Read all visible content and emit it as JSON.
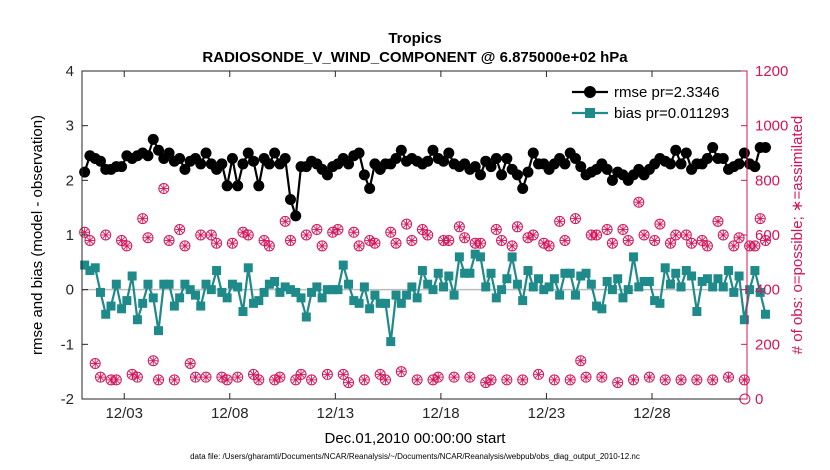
{
  "chart_data": {
    "type": "line",
    "title": "Tropics",
    "subtitle": "RADIOSONDE_V_WIND_COMPONENT @ 6.875000e+02 hPa",
    "xlabel": "Dec.01,2010 00:00:00 start",
    "ylabel": "rmse and bias (model - observation)",
    "y2label": "# of obs: o=possible; ∗=assimilated",
    "footnote": "data file: /Users/gharamti/Documents/NCAR/Reanalysis/~/Documents/NCAR/Reanalysis/webpub/obs_diag_output_2010-12.nc",
    "xlim": [
      1,
      32.5
    ],
    "ylim": [
      -2,
      4
    ],
    "y2lim": [
      0,
      1200
    ],
    "xticks": [
      3,
      8,
      13,
      18,
      23,
      28
    ],
    "xtick_labels": [
      "12/03",
      "12/08",
      "12/13",
      "12/18",
      "12/23",
      "12/28"
    ],
    "yticks": [
      -2,
      -1,
      0,
      1,
      2,
      3,
      4
    ],
    "ytick_labels": [
      "-2",
      "-1",
      "0",
      "1",
      "2",
      "3",
      "4"
    ],
    "y2ticks": [
      0,
      200,
      400,
      600,
      800,
      1000,
      1200
    ],
    "y2tick_labels": [
      "0",
      "200",
      "400",
      "600",
      "800",
      "1000",
      "1200"
    ],
    "legend_position": "top-right",
    "x_start": 1.125,
    "x_step": 0.25,
    "colors": {
      "rmse": "#000000",
      "bias": "#1f8a8a",
      "obs": "#d4145a",
      "axis2": "#d4145a",
      "zero": "#bdbdbd"
    },
    "series": [
      {
        "name": "rmse pr=2.3346",
        "values": [
          2.15,
          2.45,
          2.4,
          2.35,
          2.2,
          2.2,
          2.25,
          2.25,
          2.45,
          2.4,
          2.45,
          2.5,
          2.45,
          2.75,
          2.55,
          2.4,
          2.5,
          2.35,
          2.4,
          2.2,
          2.35,
          2.4,
          2.3,
          2.5,
          2.3,
          2.2,
          2.3,
          1.9,
          2.4,
          1.9,
          2.3,
          2.5,
          2.35,
          1.9,
          2.4,
          2.3,
          2.5,
          2.3,
          2.4,
          1.65,
          1.35,
          2.25,
          2.25,
          2.35,
          2.3,
          2.2,
          2.1,
          2.25,
          2.3,
          2.4,
          2.3,
          2.45,
          2.5,
          2.1,
          1.85,
          2.3,
          2.2,
          2.3,
          2.3,
          2.4,
          2.55,
          2.35,
          2.4,
          2.35,
          2.3,
          2.35,
          2.55,
          2.4,
          2.35,
          2.5,
          2.3,
          2.25,
          2.3,
          2.2,
          2.25,
          2.1,
          2.35,
          2.25,
          2.4,
          2.1,
          2.4,
          2.2,
          2.1,
          1.85,
          2.15,
          2.5,
          2.3,
          2.3,
          2.2,
          2.3,
          2.4,
          2.3,
          2.5,
          2.4,
          2.25,
          2.1,
          2.15,
          2.2,
          2.3,
          2.2,
          2.0,
          2.15,
          2.1,
          2.0,
          2.1,
          2.2,
          2.1,
          2.2,
          2.3,
          2.4,
          2.35,
          2.3,
          2.55,
          2.3,
          2.5,
          2.2,
          2.3,
          2.3,
          2.4,
          2.6,
          2.4,
          2.4,
          2.2,
          2.25,
          2.3,
          2.5,
          2.3,
          2.25,
          2.6,
          2.6
        ],
        "marker": "circle"
      },
      {
        "name": "bias pr=0.011293",
        "values": [
          0.45,
          0.35,
          0.4,
          -0.05,
          -0.45,
          -0.3,
          0.1,
          -0.35,
          -0.2,
          0.25,
          -0.55,
          -0.25,
          0.1,
          -0.15,
          -0.75,
          0.1,
          0.1,
          -0.3,
          -0.15,
          0.1,
          0.0,
          -0.1,
          -0.3,
          0.1,
          0.0,
          0.35,
          -0.05,
          -0.15,
          0.1,
          0.05,
          -0.4,
          0.4,
          -0.25,
          -0.2,
          -0.05,
          0.1,
          0.15,
          -0.05,
          0.05,
          0.0,
          -0.05,
          -0.15,
          -0.5,
          -0.05,
          0.05,
          -0.15,
          0.0,
          0.0,
          0.0,
          0.45,
          0.1,
          -0.2,
          -0.25,
          0.05,
          -0.35,
          -0.1,
          -0.25,
          -0.25,
          -0.95,
          -0.1,
          -0.25,
          -0.1,
          0.05,
          -0.15,
          0.35,
          0.1,
          0.0,
          0.3,
          0.05,
          0.25,
          -0.1,
          0.6,
          0.3,
          0.3,
          0.65,
          0.6,
          0.05,
          0.3,
          -0.15,
          0.0,
          0.2,
          0.6,
          0.1,
          -0.2,
          0.35,
          0.05,
          0.2,
          0.0,
          0.05,
          0.2,
          -0.1,
          0.3,
          0.3,
          -0.1,
          0.25,
          0.3,
          0.1,
          -0.3,
          -0.35,
          0.15,
          0.0,
          0.2,
          -0.15,
          0.0,
          0.6,
          0.05,
          0.15,
          0.15,
          -0.2,
          -0.25,
          0.4,
          0.1,
          0.3,
          0.05,
          0.35,
          0.25,
          -0.4,
          0.15,
          0.2,
          0.05,
          0.2,
          0.05,
          0.35,
          -0.05,
          0.25,
          -0.55,
          0.0,
          0.35,
          -0.05,
          -0.45
        ],
        "marker": "square"
      },
      {
        "name": "obs possible",
        "values": [
          [
            610,
            580,
            130,
            80,
            600,
            70,
            70,
            580,
            560,
            90,
            80,
            660,
            590,
            140,
            70,
            770,
            580,
            70,
            620,
            560,
            130,
            80,
            600,
            80,
            600,
            570,
            80,
            70,
            570,
            80,
            610,
            600,
            90,
            70,
            580,
            560,
            70,
            80,
            650,
            580,
            70,
            90,
            600,
            70,
            620,
            560,
            90,
            610,
            620,
            90,
            60,
            610,
            560,
            70,
            580,
            570,
            90,
            70,
            610,
            570,
            100,
            640,
            580,
            70,
            620,
            600,
            70,
            80,
            580,
            580,
            80,
            630,
            590,
            80,
            570,
            570,
            60,
            70,
            620,
            580,
            70,
            560,
            630,
            70,
            590,
            600,
            90,
            570,
            560,
            70,
            650,
            580,
            70,
            660,
            140,
            80,
            600,
            600,
            80,
            620,
            570,
            60,
            620,
            580,
            70,
            720,
            600,
            80,
            580,
            640,
            70,
            570,
            600,
            70,
            600,
            570,
            70,
            580,
            560,
            70,
            650,
            600,
            80,
            560,
            590,
            70,
            560,
            560,
            660,
            580
          ],
          [
            0
          ]
        ],
        "marker": "circle-open"
      }
    ]
  }
}
